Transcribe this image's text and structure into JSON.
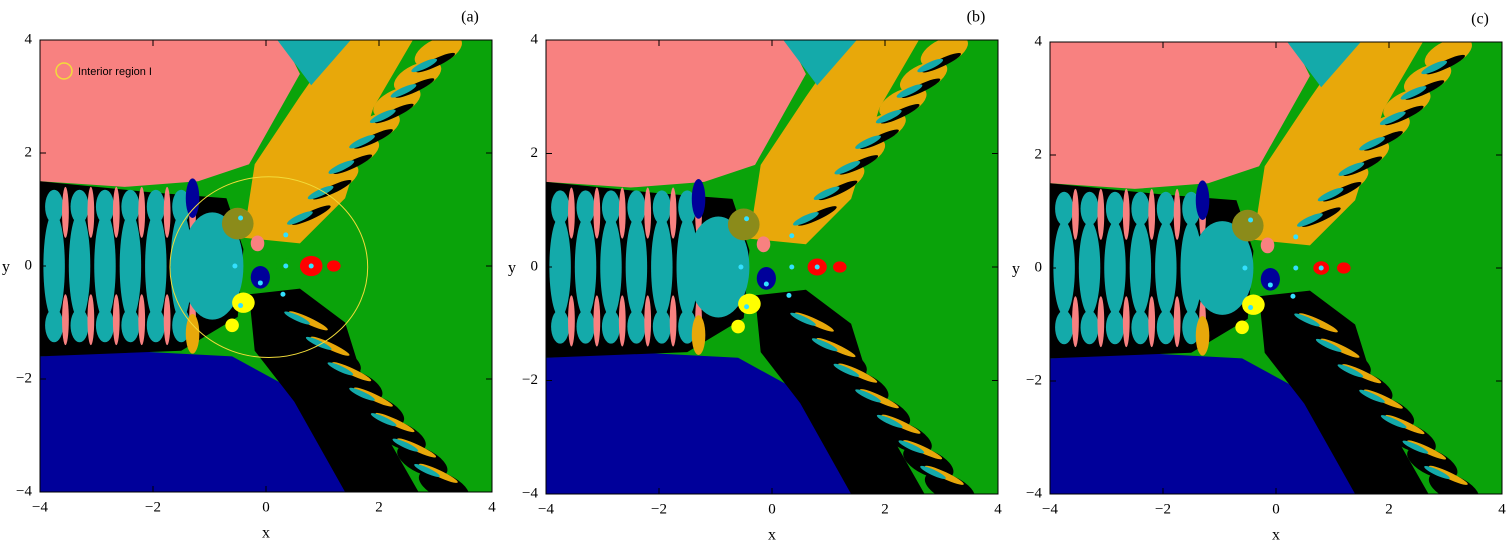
{
  "chart_data": [
    {
      "type": "basin",
      "panel_label": "(a)",
      "xlabel": "x",
      "ylabel": "y",
      "xlim": [
        -4,
        4
      ],
      "ylim": [
        -4,
        4
      ],
      "xticks": [
        {
          "value": -4,
          "label": "−4"
        },
        {
          "value": -2,
          "label": "−2"
        },
        0,
        2,
        4
      ],
      "yticks": [
        {
          "value": -4,
          "label": "−4"
        },
        {
          "value": -2,
          "label": "−2"
        },
        0,
        2,
        4
      ],
      "annotation": "Interior region I",
      "annotation_color": "#f2dc3a"
    },
    {
      "type": "basin",
      "panel_label": "(b)",
      "xlabel": "x",
      "ylabel": "y",
      "xlim": [
        -4,
        4
      ],
      "ylim": [
        -4,
        4
      ],
      "xticks": [
        {
          "value": -4,
          "label": "−4"
        },
        {
          "value": -2,
          "label": "−2"
        },
        0,
        2,
        4
      ],
      "yticks": [
        {
          "value": -4,
          "label": "−4"
        },
        {
          "value": -2,
          "label": "−2"
        },
        0,
        2,
        4
      ]
    },
    {
      "type": "basin",
      "panel_label": "(c)",
      "xlabel": "x",
      "ylabel": "y",
      "xlim": [
        -4,
        4
      ],
      "ylim": [
        -4,
        4
      ],
      "xticks": [
        {
          "value": -4,
          "label": "−4"
        },
        {
          "value": -2,
          "label": "−2"
        },
        0,
        2,
        4
      ],
      "yticks": [
        {
          "value": -4,
          "label": "−4"
        },
        {
          "value": -2,
          "label": "−2"
        },
        0,
        2,
        4
      ]
    }
  ]
}
